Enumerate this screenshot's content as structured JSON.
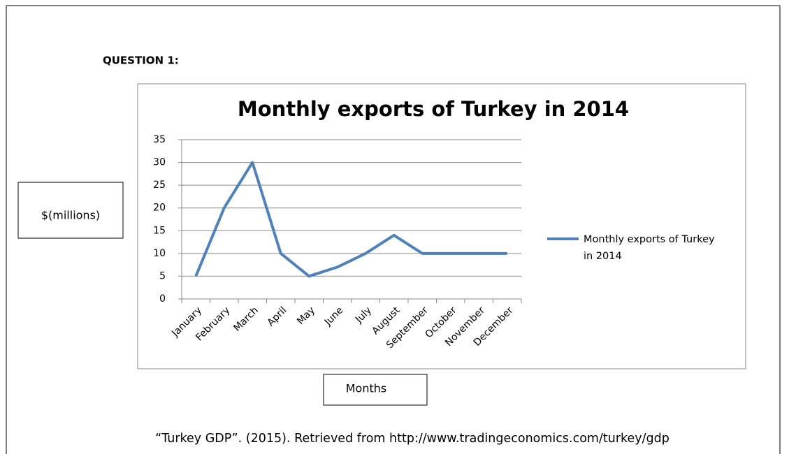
{
  "heading": "QUESTION 1:",
  "citation": "“Turkey GDP”. (2015). Retrieved from http://www.tradingeconomics.com/turkey/gdp",
  "chart_data": {
    "type": "line",
    "title": "Monthly exports of  Turkey  in 2014",
    "ylabel": "$(millions)",
    "xlabel": "Months",
    "categories": [
      "January",
      "February",
      "March",
      "April",
      "May",
      "June",
      "July",
      "August",
      "September",
      "October",
      "November",
      "December"
    ],
    "series": [
      {
        "name": "Monthly exports of  Turkey  in 2014",
        "color": "#4f81bd",
        "values": [
          5,
          20,
          30,
          10,
          5,
          7,
          10,
          14,
          10,
          10,
          10,
          10
        ]
      }
    ],
    "ylim": [
      0,
      35
    ],
    "yticks": [
      0,
      5,
      10,
      15,
      20,
      25,
      30,
      35
    ],
    "grid": true,
    "legend": "right"
  }
}
